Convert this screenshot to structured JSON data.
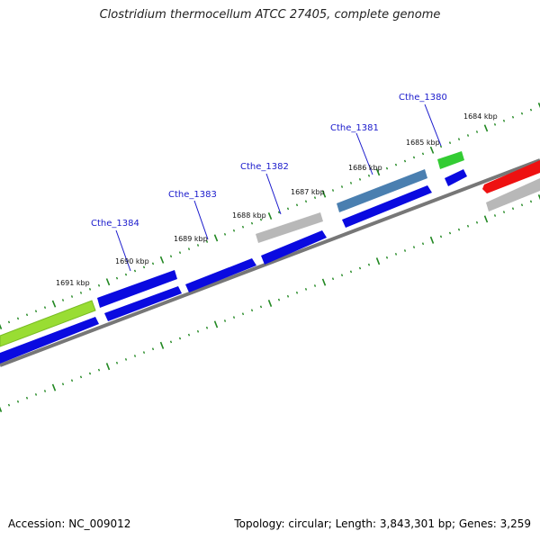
{
  "title": "Clostridium thermocellum ATCC 27405, complete genome",
  "footer": {
    "accession": "Accession: NC_009012",
    "stats": "Topology: circular; Length: 3,843,301 bp; Genes: 3,259"
  },
  "colors": {
    "cds_blue": "#0a0ae0",
    "hypothetical_gray": "#b8b8b8",
    "steel_blue": "#4a7fb0",
    "green": "#33cc33",
    "lime": "#99dd33",
    "red": "#ee1111",
    "backbone": "#777777",
    "ticks": "#228822",
    "gene_label": "#1a1acc"
  },
  "kbp_labels": [
    "1684 kbp",
    "1685 kbp",
    "1686 kbp",
    "1687 kbp",
    "1688 kbp",
    "1689 kbp",
    "1690 kbp",
    "1691 kbp"
  ],
  "gene_labels": [
    "Cthe_1380",
    "Cthe_1381",
    "Cthe_1382",
    "Cthe_1383",
    "Cthe_1384"
  ]
}
